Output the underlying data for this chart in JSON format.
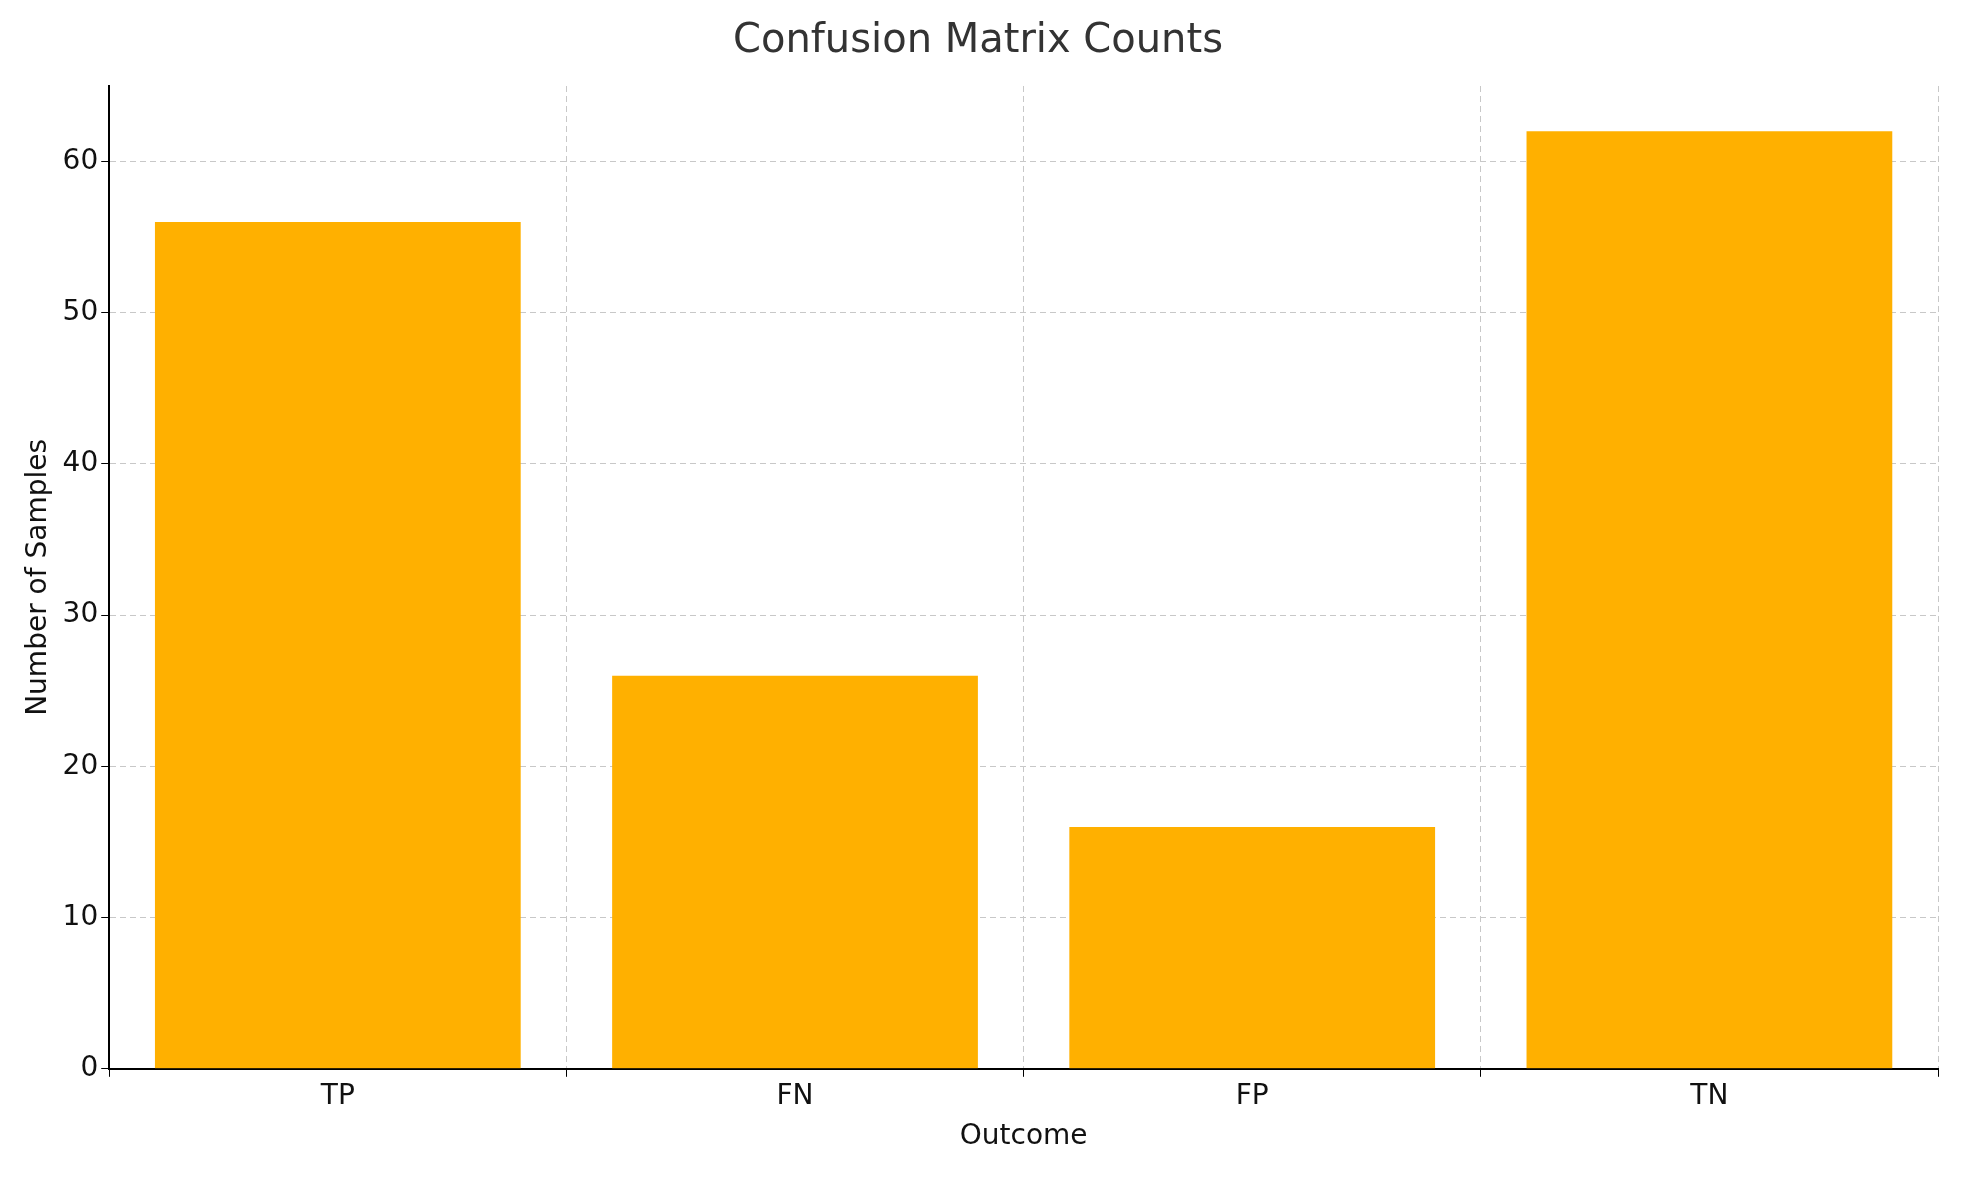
{
  "chart_data": {
    "type": "bar",
    "title": "Confusion Matrix Counts",
    "xlabel": "Outcome",
    "ylabel": "Number of Samples",
    "categories": [
      "TP",
      "FN",
      "FP",
      "TN"
    ],
    "values": [
      56,
      26,
      16,
      62
    ],
    "color": "#ffb000",
    "ylim": [
      0,
      65
    ],
    "yticks": [
      0,
      10,
      20,
      30,
      40,
      50,
      60
    ],
    "grid": true
  }
}
